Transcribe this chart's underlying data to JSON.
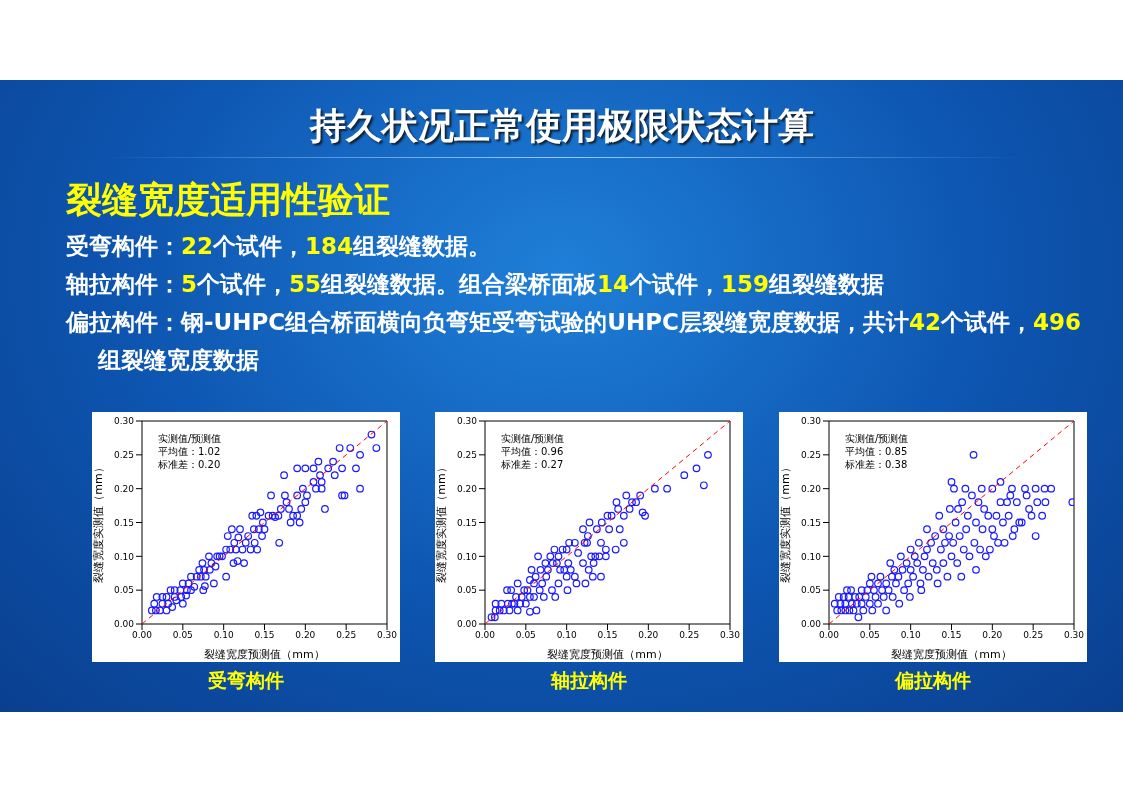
{
  "chart_data": [
    {
      "type": "other",
      "title": "持久状况正常使用极限状态计算",
      "subtitle": "裂缝宽度适用性验证",
      "annotations": [
        "受弯构件：22个试件，184组裂缝数据。",
        "轴拉构件：5个试件，55组裂缝数据。组合梁桥面板14个试件，159组裂缝数据",
        "偏拉构件：钢-UHPC组合桥面横向负弯矩受弯试验的UHPC层裂缝宽度数据，共计42个试件，496组裂缝宽度数据"
      ]
    },
    {
      "type": "scatter",
      "title": "受弯构件",
      "xlabel": "裂缝宽度预测值（mm）",
      "ylabel": "裂缝宽度实测值（mm）",
      "annotations": [
        "实测值/预测值",
        "平均值：1.02",
        "标准差：0.20"
      ],
      "marker": "circle",
      "xlim": [
        0,
        0.3
      ],
      "ylim": [
        0,
        0.3
      ],
      "xticks": [
        {
          "value": 0,
          "label": "0.00"
        },
        {
          "value": 0.05,
          "label": "0.05"
        },
        {
          "value": 0.1,
          "label": "0.10"
        },
        {
          "value": 0.15,
          "label": "0.15"
        },
        {
          "value": 0.2,
          "label": "0.20"
        },
        {
          "value": 0.25,
          "label": "0.25"
        },
        {
          "value": 0.3,
          "label": "0.30"
        }
      ],
      "yticks": [
        {
          "value": 0,
          "label": "0.00"
        },
        {
          "value": 0.05,
          "label": "0.05"
        },
        {
          "value": 0.1,
          "label": "0.10"
        },
        {
          "value": 0.15,
          "label": "0.15"
        },
        {
          "value": 0.2,
          "label": "0.20"
        },
        {
          "value": 0.25,
          "label": "0.25"
        },
        {
          "value": 0.3,
          "label": "0.30"
        }
      ],
      "series": [
        {
          "color": "#1a1aff",
          "x": [
            0.012,
            0.017,
            0.015,
            0.018,
            0.022,
            0.025,
            0.025,
            0.03,
            0.03,
            0.032,
            0.035,
            0.037,
            0.04,
            0.04,
            0.042,
            0.047,
            0.048,
            0.05,
            0.05,
            0.054,
            0.055,
            0.057,
            0.06,
            0.06,
            0.064,
            0.067,
            0.07,
            0.072,
            0.074,
            0.075,
            0.076,
            0.077,
            0.078,
            0.082,
            0.083,
            0.085,
            0.088,
            0.09,
            0.092,
            0.095,
            0.098,
            0.103,
            0.103,
            0.105,
            0.108,
            0.11,
            0.112,
            0.113,
            0.115,
            0.117,
            0.118,
            0.12,
            0.123,
            0.125,
            0.127,
            0.13,
            0.133,
            0.135,
            0.137,
            0.138,
            0.14,
            0.141,
            0.143,
            0.145,
            0.147,
            0.148,
            0.15,
            0.155,
            0.158,
            0.16,
            0.163,
            0.168,
            0.167,
            0.17,
            0.174,
            0.175,
            0.177,
            0.18,
            0.182,
            0.185,
            0.19,
            0.19,
            0.19,
            0.193,
            0.195,
            0.197,
            0.2,
            0.2,
            0.202,
            0.21,
            0.21,
            0.213,
            0.216,
            0.218,
            0.22,
            0.22,
            0.224,
            0.228,
            0.234,
            0.236,
            0.242,
            0.245,
            0.245,
            0.248,
            0.255,
            0.262,
            0.267,
            0.267,
            0.281,
            0.287
          ],
          "values": [
            0.02,
            0.02,
            0.03,
            0.04,
            0.02,
            0.03,
            0.04,
            0.02,
            0.04,
            0.03,
            0.05,
            0.025,
            0.04,
            0.05,
            0.035,
            0.05,
            0.04,
            0.03,
            0.06,
            0.042,
            0.05,
            0.06,
            0.05,
            0.07,
            0.055,
            0.07,
            0.08,
            0.07,
            0.09,
            0.05,
            0.08,
            0.056,
            0.07,
            0.1,
            0.08,
            0.09,
            0.06,
            0.085,
            0.1,
            0.1,
            0.1,
            0.07,
            0.11,
            0.13,
            0.11,
            0.14,
            0.09,
            0.12,
            0.11,
            0.093,
            0.128,
            0.14,
            0.11,
            0.09,
            0.12,
            0.13,
            0.11,
            0.16,
            0.14,
            0.12,
            0.16,
            0.11,
            0.14,
            0.165,
            0.13,
            0.15,
            0.14,
            0.16,
            0.19,
            0.16,
            0.158,
            0.12,
            0.16,
            0.17,
            0.22,
            0.19,
            0.18,
            0.17,
            0.15,
            0.16,
            0.23,
            0.19,
            0.16,
            0.15,
            0.17,
            0.2,
            0.18,
            0.23,
            0.19,
            0.21,
            0.23,
            0.2,
            0.24,
            0.22,
            0.2,
            0.21,
            0.17,
            0.23,
            0.24,
            0.22,
            0.26,
            0.23,
            0.19,
            0.19,
            0.26,
            0.23,
            0.25,
            0.2,
            0.28,
            0.26
          ]
        },
        {
          "type": "line",
          "color": "#ff0000",
          "line_style": "dashed",
          "marker": "none",
          "x": [
            0,
            0.3
          ],
          "values": [
            0,
            0.3
          ]
        }
      ]
    },
    {
      "type": "scatter",
      "title": "轴拉构件",
      "xlabel": "裂缝宽度预测值（mm）",
      "ylabel": "裂缝宽度实测值（mm）",
      "annotations": [
        "实测值/预测值",
        "平均值：0.96",
        "标准差：0.27"
      ],
      "marker": "circle",
      "xlim": [
        0,
        0.3
      ],
      "ylim": [
        0,
        0.3
      ],
      "xticks": [
        {
          "value": 0,
          "label": "0.00"
        },
        {
          "value": 0.05,
          "label": "0.05"
        },
        {
          "value": 0.1,
          "label": "0.10"
        },
        {
          "value": 0.15,
          "label": "0.15"
        },
        {
          "value": 0.2,
          "label": "0.20"
        },
        {
          "value": 0.25,
          "label": "0.25"
        },
        {
          "value": 0.3,
          "label": "0.30"
        }
      ],
      "yticks": [
        {
          "value": 0,
          "label": "0.00"
        },
        {
          "value": 0.05,
          "label": "0.05"
        },
        {
          "value": 0.1,
          "label": "0.10"
        },
        {
          "value": 0.15,
          "label": "0.15"
        },
        {
          "value": 0.2,
          "label": "0.20"
        },
        {
          "value": 0.25,
          "label": "0.25"
        },
        {
          "value": 0.3,
          "label": "0.30"
        }
      ],
      "series": [
        {
          "color": "#1a1aff",
          "x": [
            0.008,
            0.012,
            0.013,
            0.013,
            0.018,
            0.02,
            0.023,
            0.027,
            0.028,
            0.03,
            0.032,
            0.033,
            0.036,
            0.038,
            0.04,
            0.04,
            0.043,
            0.045,
            0.048,
            0.05,
            0.052,
            0.055,
            0.055,
            0.057,
            0.055,
            0.06,
            0.06,
            0.062,
            0.063,
            0.065,
            0.067,
            0.068,
            0.07,
            0.072,
            0.074,
            0.075,
            0.077,
            0.08,
            0.082,
            0.083,
            0.085,
            0.086,
            0.088,
            0.09,
            0.09,
            0.092,
            0.095,
            0.097,
            0.1,
            0.1,
            0.101,
            0.102,
            0.103,
            0.105,
            0.11,
            0.11,
            0.112,
            0.114,
            0.12,
            0.12,
            0.122,
            0.123,
            0.125,
            0.126,
            0.127,
            0.128,
            0.13,
            0.132,
            0.133,
            0.135,
            0.137,
            0.14,
            0.142,
            0.142,
            0.143,
            0.148,
            0.148,
            0.15,
            0.152,
            0.155,
            0.16,
            0.161,
            0.163,
            0.165,
            0.17,
            0.17,
            0.173,
            0.177,
            0.18,
            0.185,
            0.19,
            0.193,
            0.196,
            0.208,
            0.223,
            0.244,
            0.259,
            0.268,
            0.273
          ],
          "values": [
            0.01,
            0.01,
            0.02,
            0.03,
            0.02,
            0.03,
            0.02,
            0.05,
            0.03,
            0.02,
            0.05,
            0.03,
            0.03,
            0.04,
            0.06,
            0.02,
            0.03,
            0.04,
            0.05,
            0.03,
            0.05,
            0.065,
            0.04,
            0.08,
            0.018,
            0.06,
            0.04,
            0.07,
            0.02,
            0.1,
            0.05,
            0.08,
            0.06,
            0.04,
            0.09,
            0.07,
            0.08,
            0.1,
            0.05,
            0.09,
            0.11,
            0.04,
            0.09,
            0.06,
            0.1,
            0.08,
            0.11,
            0.08,
            0.11,
            0.07,
            0.05,
            0.09,
            0.12,
            0.08,
            0.12,
            0.07,
            0.06,
            0.105,
            0.14,
            0.09,
            0.12,
            0.06,
            0.12,
            0.13,
            0.08,
            0.15,
            0.1,
            0.07,
            0.09,
            0.1,
            0.14,
            0.1,
            0.12,
            0.07,
            0.15,
            0.11,
            0.1,
            0.16,
            0.14,
            0.16,
            0.11,
            0.18,
            0.17,
            0.14,
            0.12,
            0.16,
            0.19,
            0.17,
            0.18,
            0.18,
            0.19,
            0.165,
            0.16,
            0.2,
            0.2,
            0.22,
            0.23,
            0.205,
            0.25
          ]
        },
        {
          "type": "line",
          "color": "#ff0000",
          "line_style": "dashed",
          "marker": "none",
          "x": [
            0,
            0.3
          ],
          "values": [
            0,
            0.3
          ]
        }
      ]
    },
    {
      "type": "scatter",
      "title": "偏拉构件",
      "xlabel": "裂缝宽度预测值（mm）",
      "ylabel": "裂缝宽度实测值（mm）",
      "annotations": [
        "实测值/预测值",
        "平均值：0.85",
        "标准差：0.38"
      ],
      "marker": "circle",
      "xlim": [
        0,
        0.3
      ],
      "ylim": [
        0,
        0.3
      ],
      "xticks": [
        {
          "value": 0,
          "label": "0.00"
        },
        {
          "value": 0.05,
          "label": "0.05"
        },
        {
          "value": 0.1,
          "label": "0.10"
        },
        {
          "value": 0.15,
          "label": "0.15"
        },
        {
          "value": 0.2,
          "label": "0.20"
        },
        {
          "value": 0.25,
          "label": "0.25"
        },
        {
          "value": 0.3,
          "label": "0.30"
        }
      ],
      "yticks": [
        {
          "value": 0,
          "label": "0.00"
        },
        {
          "value": 0.05,
          "label": "0.05"
        },
        {
          "value": 0.1,
          "label": "0.10"
        },
        {
          "value": 0.15,
          "label": "0.15"
        },
        {
          "value": 0.2,
          "label": "0.20"
        },
        {
          "value": 0.25,
          "label": "0.25"
        },
        {
          "value": 0.3,
          "label": "0.30"
        }
      ],
      "series": [
        {
          "color": "#1a1aff",
          "x": [
            0.007,
            0.01,
            0.012,
            0.014,
            0.015,
            0.018,
            0.02,
            0.02,
            0.022,
            0.024,
            0.025,
            0.027,
            0.028,
            0.03,
            0.032,
            0.034,
            0.036,
            0.037,
            0.04,
            0.04,
            0.042,
            0.045,
            0.047,
            0.05,
            0.05,
            0.052,
            0.053,
            0.055,
            0.057,
            0.06,
            0.06,
            0.063,
            0.065,
            0.067,
            0.07,
            0.07,
            0.073,
            0.075,
            0.077,
            0.078,
            0.08,
            0.082,
            0.085,
            0.086,
            0.088,
            0.09,
            0.092,
            0.095,
            0.097,
            0.099,
            0.1,
            0.1,
            0.103,
            0.105,
            0.108,
            0.11,
            0.112,
            0.113,
            0.115,
            0.117,
            0.12,
            0.12,
            0.122,
            0.125,
            0.127,
            0.13,
            0.132,
            0.133,
            0.135,
            0.137,
            0.14,
            0.14,
            0.142,
            0.145,
            0.147,
            0.148,
            0.15,
            0.15,
            0.152,
            0.153,
            0.155,
            0.157,
            0.158,
            0.16,
            0.162,
            0.163,
            0.165,
            0.167,
            0.168,
            0.17,
            0.172,
            0.175,
            0.177,
            0.178,
            0.18,
            0.18,
            0.183,
            0.185,
            0.187,
            0.188,
            0.19,
            0.192,
            0.195,
            0.197,
            0.2,
            0.2,
            0.202,
            0.205,
            0.207,
            0.21,
            0.21,
            0.213,
            0.215,
            0.218,
            0.22,
            0.222,
            0.224,
            0.225,
            0.227,
            0.23,
            0.233,
            0.236,
            0.24,
            0.242,
            0.245,
            0.248,
            0.253,
            0.253,
            0.255,
            0.261,
            0.264,
            0.265,
            0.272,
            0.298
          ],
          "values": [
            0.03,
            0.02,
            0.04,
            0.03,
            0.02,
            0.04,
            0.03,
            0.02,
            0.05,
            0.04,
            0.02,
            0.05,
            0.03,
            0.02,
            0.04,
            0.03,
            0.01,
            0.04,
            0.03,
            0.05,
            0.02,
            0.04,
            0.05,
            0.03,
            0.06,
            0.07,
            0.02,
            0.05,
            0.04,
            0.06,
            0.03,
            0.07,
            0.05,
            0.04,
            0.06,
            0.02,
            0.05,
            0.09,
            0.07,
            0.04,
            0.08,
            0.06,
            0.07,
            0.03,
            0.1,
            0.08,
            0.05,
            0.09,
            0.06,
            0.04,
            0.11,
            0.08,
            0.07,
            0.1,
            0.09,
            0.12,
            0.06,
            0.05,
            0.08,
            0.1,
            0.14,
            0.11,
            0.07,
            0.12,
            0.09,
            0.13,
            0.08,
            0.06,
            0.16,
            0.11,
            0.14,
            0.09,
            0.12,
            0.07,
            0.13,
            0.17,
            0.21,
            0.1,
            0.12,
            0.2,
            0.15,
            0.09,
            0.17,
            0.13,
            0.07,
            0.18,
            0.11,
            0.2,
            0.14,
            0.16,
            0.1,
            0.19,
            0.25,
            0.12,
            0.15,
            0.08,
            0.18,
            0.11,
            0.2,
            0.14,
            0.17,
            0.1,
            0.16,
            0.11,
            0.2,
            0.14,
            0.13,
            0.16,
            0.12,
            0.21,
            0.18,
            0.15,
            0.12,
            0.18,
            0.16,
            0.19,
            0.2,
            0.13,
            0.14,
            0.18,
            0.15,
            0.15,
            0.2,
            0.19,
            0.17,
            0.16,
            0.2,
            0.13,
            0.18,
            0.16,
            0.2,
            0.18,
            0.2,
            0.18
          ]
        },
        {
          "type": "line",
          "color": "#ff0000",
          "line_style": "dashed",
          "marker": "none",
          "x": [
            0,
            0.3
          ],
          "values": [
            0,
            0.3
          ]
        }
      ]
    }
  ]
}
